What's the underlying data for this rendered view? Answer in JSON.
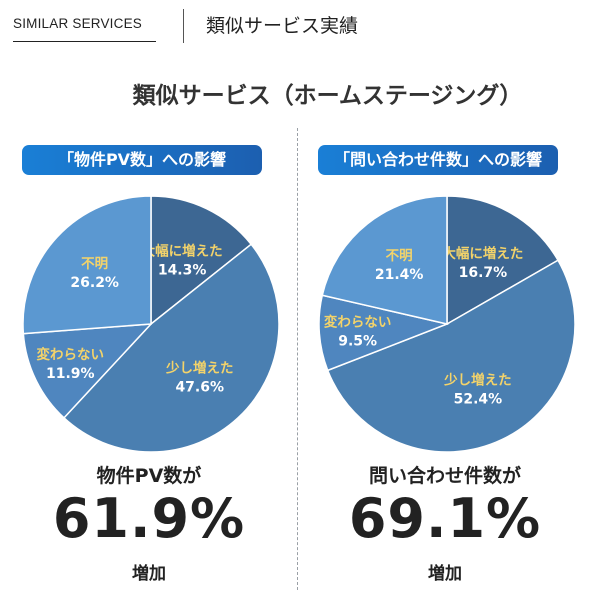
{
  "header": {
    "section_label": "SIMILAR SERVICES",
    "page_title": "類似サービス実績"
  },
  "heading": "類似サービス（ホームステージング）",
  "colors": {
    "pill_start": "#1a7fd6",
    "pill_end": "#1c5fb0",
    "slice_label": "#f3d36a",
    "slice_value": "#ffffff"
  },
  "chart_data": [
    {
      "type": "pie",
      "title": "「物件PV数」への影響",
      "slices": [
        {
          "label": "大幅に増えた",
          "value": 14.3,
          "value_text": "14.3%",
          "color": "#3d6793"
        },
        {
          "label": "少し増えた",
          "value": 47.6,
          "value_text": "47.6%",
          "color": "#4a7fb1"
        },
        {
          "label": "変わらない",
          "value": 11.9,
          "value_text": "11.9%",
          "color": "#4f86bf"
        },
        {
          "label": "不明",
          "value": 26.2,
          "value_text": "26.2%",
          "color": "#5b98d1"
        }
      ],
      "summary_label": "物件PV数が",
      "summary_value": "61.9%",
      "summary_suffix": "増加"
    },
    {
      "type": "pie",
      "title": "「問い合わせ件数」への影響",
      "slices": [
        {
          "label": "大幅に増えた",
          "value": 16.7,
          "value_text": "16.7%",
          "color": "#3d6793"
        },
        {
          "label": "少し増えた",
          "value": 52.4,
          "value_text": "52.4%",
          "color": "#4a7fb1"
        },
        {
          "label": "変わらない",
          "value": 9.5,
          "value_text": "9.5%",
          "color": "#4f86bf"
        },
        {
          "label": "不明",
          "value": 21.4,
          "value_text": "21.4%",
          "color": "#5b98d1"
        }
      ],
      "summary_label": "問い合わせ件数が",
      "summary_value": "69.1%",
      "summary_suffix": "増加"
    }
  ]
}
